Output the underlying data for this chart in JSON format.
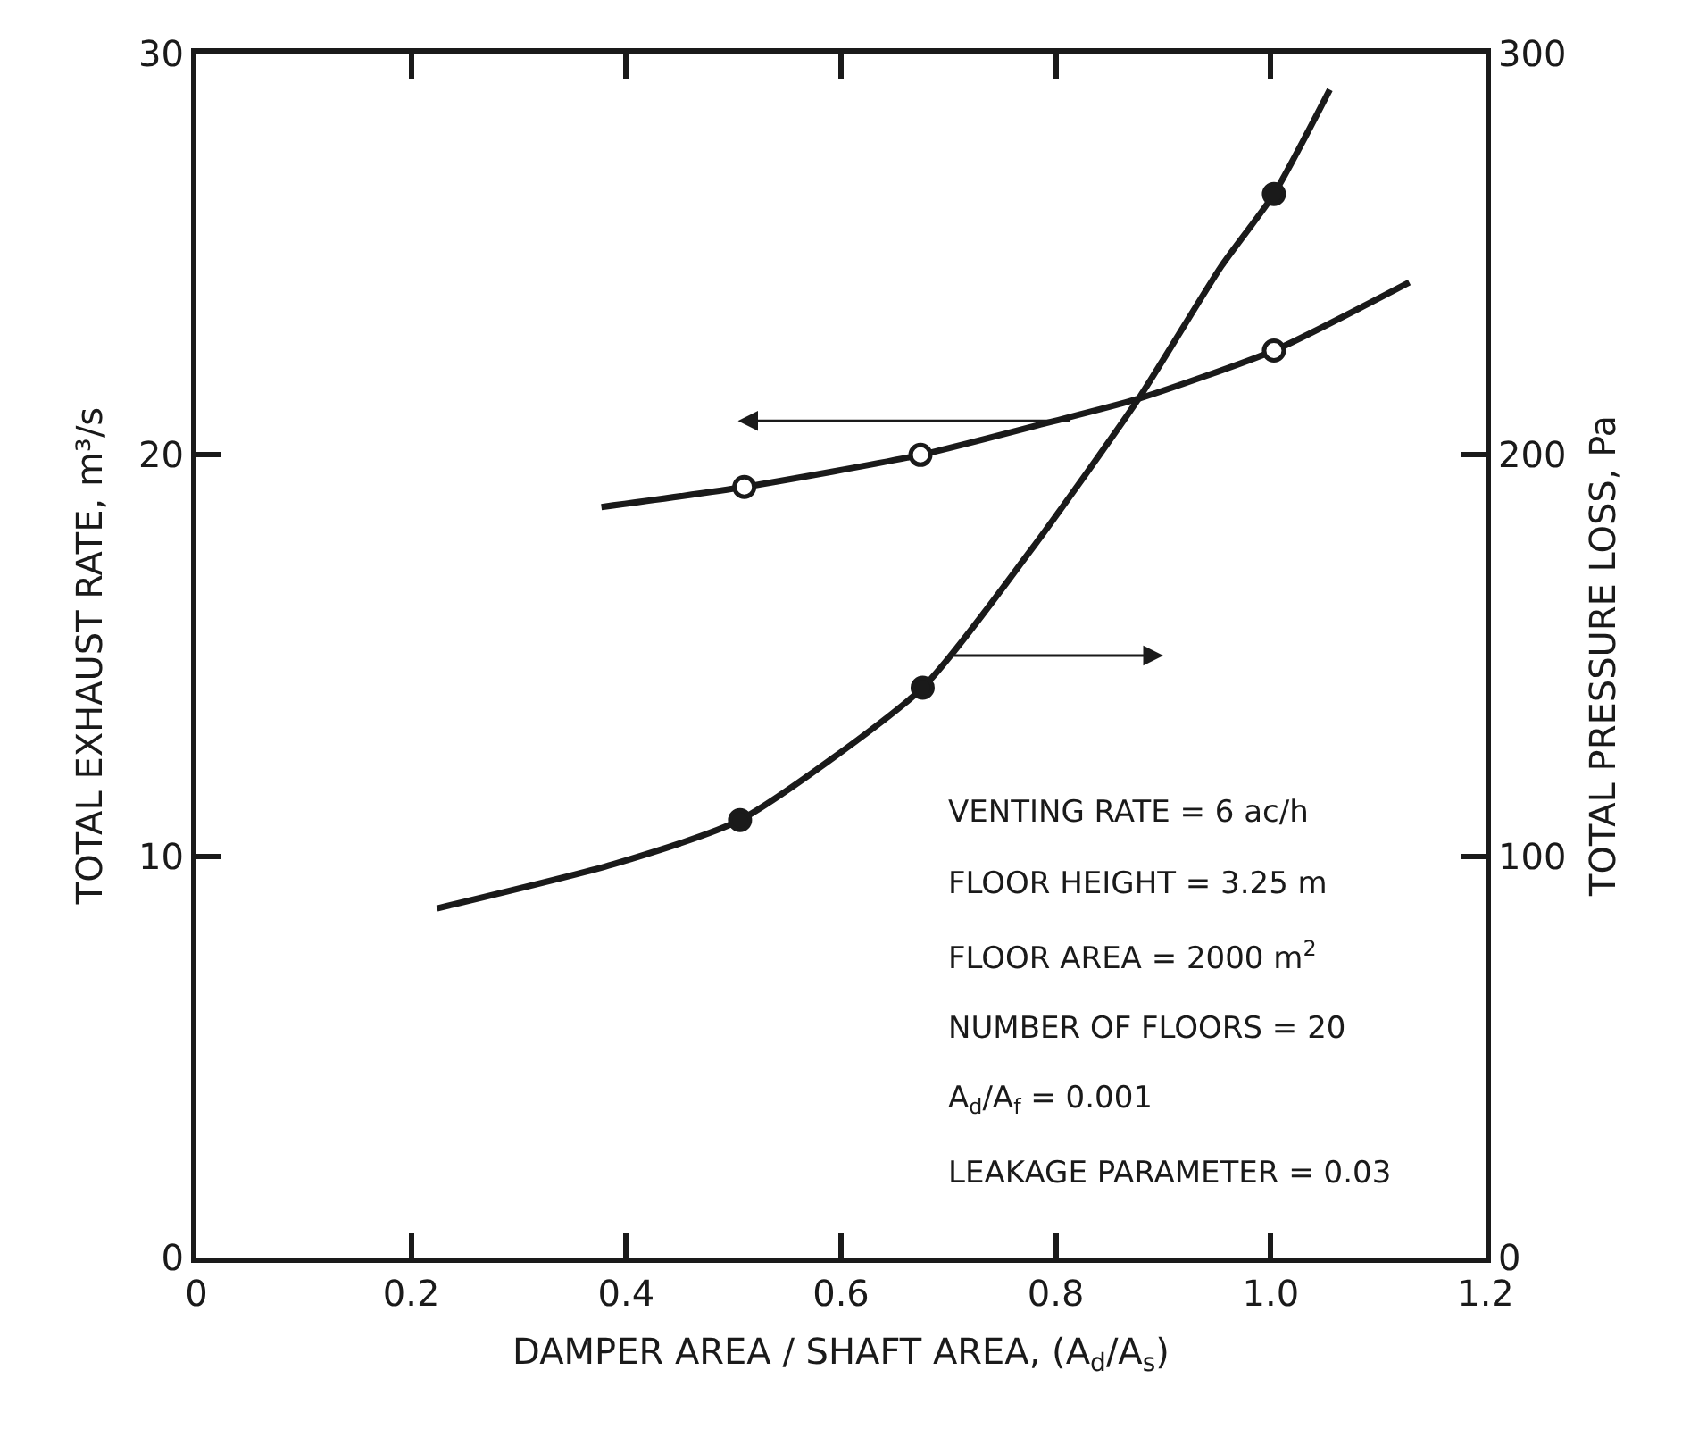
{
  "chart_data": {
    "type": "line",
    "xlabel": "DAMPER AREA / SHAFT AREA, (A$_{d}$/A$_{s}$)",
    "ylabel": "TOTAL EXHAUST RATE, m³/s",
    "y2label": "TOTAL PRESSURE LOSS, Pa",
    "series": [
      {
        "color": "#1a1a1a",
        "x": [
          0.377,
          0.51,
          0.674,
          0.792,
          0.877,
          1.003,
          1.129
        ],
        "values": [
          18.7,
          19.2,
          20.0,
          20.8,
          21.4,
          22.6,
          24.3
        ]
      },
      {
        "type": "scatter",
        "color": "#ffffff",
        "marker": "circle",
        "x": [
          0.51,
          0.674,
          1.003
        ],
        "values": [
          19.2,
          20.0,
          22.6
        ]
      },
      {
        "axis": "y2",
        "color": "#1a1a1a",
        "x": [
          0.224,
          0.388,
          0.506,
          0.676,
          0.776,
          0.877,
          0.954,
          1.003,
          1.055
        ],
        "values": [
          87,
          98,
          109,
          142,
          176,
          214,
          247,
          265,
          291
        ]
      },
      {
        "type": "scatter",
        "axis": "y2",
        "color": "#1a1a1a",
        "marker": "circle",
        "x": [
          0.506,
          0.676,
          1.003
        ],
        "values": [
          109,
          142,
          265
        ]
      }
    ],
    "xlim": [
      0,
      1.2
    ],
    "xticks": [
      0,
      {
        "value": 0.2,
        "label": "0.2"
      },
      {
        "value": 0.4,
        "label": "0.4"
      },
      {
        "value": 0.6,
        "label": "0.6"
      },
      {
        "value": 0.8,
        "label": "0.8"
      },
      {
        "value": 1.0,
        "label": "1.0"
      },
      {
        "value": 1.2,
        "label": "1.2"
      }
    ],
    "ylim": [
      0,
      30
    ],
    "yticks": [
      0,
      10,
      20,
      30
    ],
    "y2lim": [
      0,
      300
    ],
    "y2ticks": [
      0,
      100,
      200,
      300
    ],
    "annotations": [
      "VENTING RATE = 6 ac/h",
      "FLOOR HEIGHT = 3.25 m",
      "FLOOR AREA = 2000 m$^{2}$",
      "NUMBER OF FLOORS = 20",
      "A$_{d}$/A$_{f}$ = 0.001",
      "LEAKAGE PARAMETER = 0.03"
    ]
  }
}
